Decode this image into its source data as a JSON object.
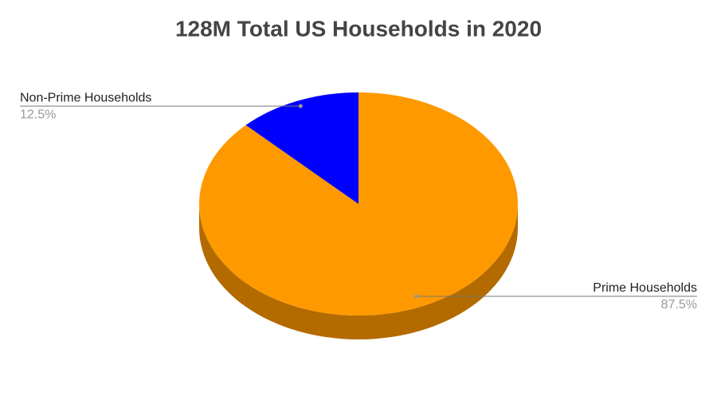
{
  "chart_data": {
    "type": "pie",
    "title": "128M Total US Households in 2020",
    "categories": [
      "Prime Households",
      "Non-Prime Households"
    ],
    "values": [
      87.5,
      12.5
    ],
    "value_labels": [
      "87.5%",
      "12.5%"
    ],
    "colors": [
      "#ff9900",
      "#0000ff"
    ]
  }
}
